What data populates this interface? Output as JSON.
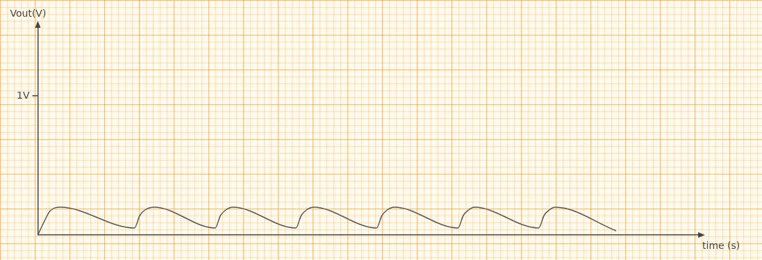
{
  "chart_data": {
    "type": "line",
    "x_label": "time (s)",
    "y_label": "Vout(V)",
    "x": [
      0,
      0.1,
      0.18,
      0.34,
      1.46,
      1.54,
      1.62,
      1.76,
      2.68,
      2.76,
      2.84,
      2.95,
      3.9,
      3.98,
      4.06,
      4.17,
      5.12,
      5.2,
      5.28,
      5.39,
      6.35,
      6.43,
      6.51,
      6.6,
      7.57,
      7.65,
      7.73,
      7.82,
      8.74
    ],
    "values": [
      0,
      0.1,
      0.17,
      0.2,
      0.05,
      0.14,
      0.18,
      0.2,
      0.05,
      0.14,
      0.18,
      0.2,
      0.05,
      0.14,
      0.18,
      0.2,
      0.05,
      0.14,
      0.18,
      0.2,
      0.05,
      0.14,
      0.18,
      0.2,
      0.05,
      0.14,
      0.18,
      0.2,
      0.03
    ],
    "color": "#555555",
    "line_style": "solid",
    "xlim": [
      0,
      10
    ],
    "ylim": [
      0,
      1.5
    ],
    "yticks": [
      {
        "value": 1,
        "label": "1V"
      }
    ],
    "tick_labels": "y"
  }
}
